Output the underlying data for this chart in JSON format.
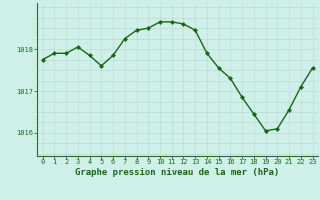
{
  "x": [
    0,
    1,
    2,
    3,
    4,
    5,
    6,
    7,
    8,
    9,
    10,
    11,
    12,
    13,
    14,
    15,
    16,
    17,
    18,
    19,
    20,
    21,
    22,
    23
  ],
  "y": [
    1017.75,
    1017.9,
    1017.9,
    1018.05,
    1017.85,
    1017.6,
    1017.85,
    1018.25,
    1018.45,
    1018.5,
    1018.65,
    1018.65,
    1018.6,
    1018.45,
    1017.9,
    1017.55,
    1017.3,
    1016.85,
    1016.45,
    1016.05,
    1016.1,
    1016.55,
    1017.1,
    1017.55
  ],
  "line_color": "#1a6618",
  "marker_color": "#1a6618",
  "bg_color": "#cef0e8",
  "title": "Graphe pression niveau de la mer (hPa)",
  "title_color": "#1a6618",
  "title_fontsize": 6.5,
  "ylabel_ticks": [
    1016,
    1017,
    1018
  ],
  "ylim": [
    1015.45,
    1019.1
  ],
  "xlim": [
    -0.5,
    23.5
  ],
  "xtick_labels": [
    "0",
    "1",
    "2",
    "3",
    "4",
    "5",
    "6",
    "7",
    "8",
    "9",
    "10",
    "11",
    "12",
    "13",
    "14",
    "15",
    "16",
    "17",
    "18",
    "19",
    "20",
    "21",
    "22",
    "23"
  ],
  "tick_fontsize": 5.0,
  "spine_color": "#336633",
  "hgrid_color": "#b8ddd6",
  "vgrid_color": "#c8d8d4"
}
